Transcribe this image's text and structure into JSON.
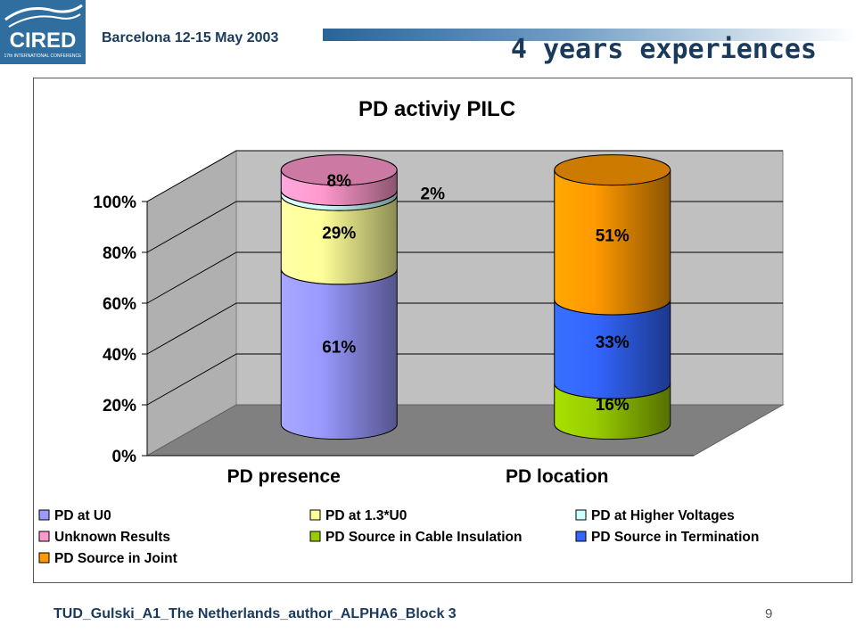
{
  "header": {
    "logo_text": "CIRED",
    "logo_subtext": "17th INTERNATIONAL CONFERENCE",
    "conference": "Barcelona  12-15 May 2003",
    "title": "4 years experiences"
  },
  "footer": {
    "text": "TUD_Gulski_A1_The Netherlands_author_ALPHA6_Block  3",
    "page": "9"
  },
  "colors": {
    "header_blue": "#1a3a5c",
    "logo_bg": "#2f6e9e"
  },
  "chart_data": {
    "type": "bar",
    "stacked": true,
    "style": "3d-cylinder",
    "title": "PD activiy PILC",
    "categories": [
      "PD presence",
      "PD location"
    ],
    "yticks": [
      "0%",
      "20%",
      "40%",
      "60%",
      "80%",
      "100%"
    ],
    "ylim": [
      0,
      100
    ],
    "grid": true,
    "legend_position": "bottom",
    "series": [
      {
        "name": "PD at U0",
        "color": "#9999ff",
        "values": [
          61,
          null
        ],
        "labels": [
          "61%",
          ""
        ]
      },
      {
        "name": "PD at 1.3*U0",
        "color": "#ffff99",
        "values": [
          29,
          null
        ],
        "labels": [
          "29%",
          ""
        ]
      },
      {
        "name": "PD at Higher Voltages",
        "color": "#ccffff",
        "values": [
          2,
          null
        ],
        "labels": [
          "2%",
          ""
        ]
      },
      {
        "name": "Unknown Results",
        "color": "#ff99cc",
        "values": [
          8,
          null
        ],
        "labels": [
          "8%",
          ""
        ]
      },
      {
        "name": "PD Source in Cable Insulation",
        "color": "#99cc00",
        "values": [
          null,
          16
        ],
        "labels": [
          "",
          "16%"
        ]
      },
      {
        "name": "PD Source in Termination",
        "color": "#3366ff",
        "values": [
          null,
          33
        ],
        "labels": [
          "",
          "33%"
        ]
      },
      {
        "name": "PD Source in Joint",
        "color": "#ff9900",
        "values": [
          null,
          51
        ],
        "labels": [
          "",
          "51%"
        ]
      }
    ]
  }
}
